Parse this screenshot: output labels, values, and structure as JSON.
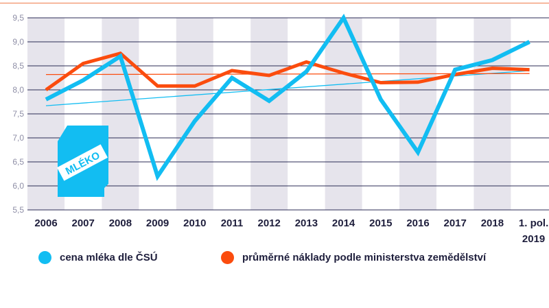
{
  "chart_data": {
    "type": "line",
    "categories": [
      "2006",
      "2007",
      "2008",
      "2009",
      "2010",
      "2011",
      "2012",
      "2013",
      "2014",
      "2015",
      "2016",
      "2017",
      "2018",
      "1. pol.|2019"
    ],
    "ylim": [
      5.5,
      9.5
    ],
    "yticks": [
      "5,5",
      "6,0",
      "6,5",
      "7,0",
      "7,5",
      "8,0",
      "8,5",
      "9,0",
      "9,5"
    ],
    "series": [
      {
        "name": "cena mléka dle ČSÚ",
        "color": "#12bdf2",
        "values": [
          7.8,
          8.2,
          8.7,
          6.2,
          7.35,
          8.25,
          7.77,
          8.38,
          9.5,
          7.8,
          6.7,
          8.42,
          8.62,
          9.0
        ]
      },
      {
        "name": "průměrné náklady podle ministerstva zemědělství",
        "color": "#fb4c0e",
        "values": [
          8.0,
          8.55,
          8.76,
          8.08,
          8.08,
          8.4,
          8.3,
          8.58,
          8.35,
          8.15,
          8.16,
          8.32,
          8.45,
          8.42
        ]
      }
    ],
    "trendlines": [
      {
        "series": "cena mléka dle ČSÚ",
        "color": "#12bdf2",
        "start": 7.67,
        "end": 8.4
      },
      {
        "series": "průměrné náklady podle ministerstva zemědělství",
        "color": "#fb4c0e",
        "start": 8.32,
        "end": 8.34
      }
    ],
    "icon_label": "MLÉKO"
  },
  "legend": [
    {
      "label": "cena mléka dle ČSÚ",
      "color": "#12bdf2"
    },
    {
      "label": "průměrné náklady podle ministerstva zemědělství",
      "color": "#fb4c0e"
    }
  ],
  "colors": {
    "grid": "#2b2b55",
    "stripe": "#e6e4ec",
    "text": "#1e1e3c"
  }
}
